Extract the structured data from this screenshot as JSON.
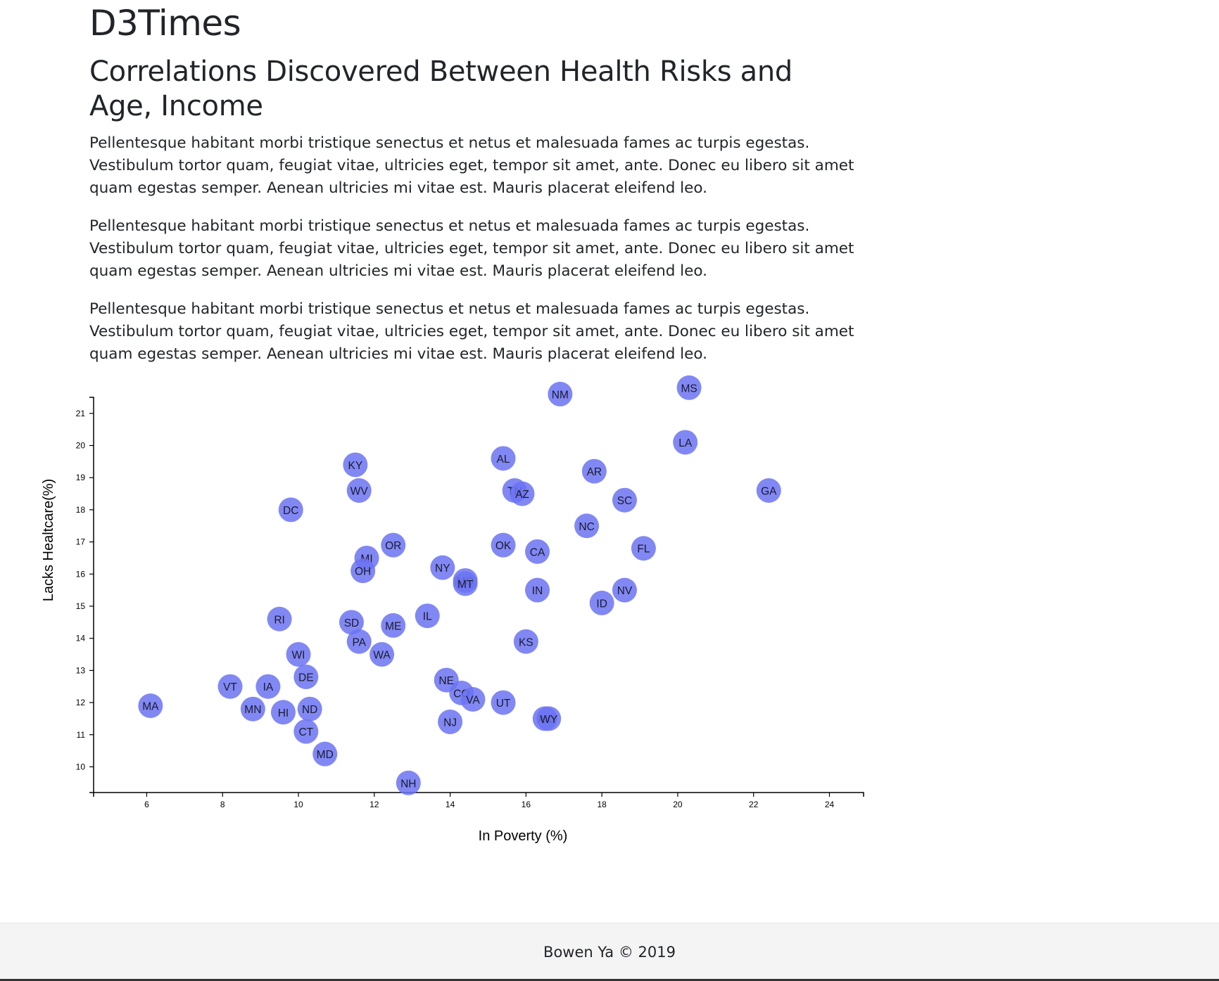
{
  "page": {
    "site_title": "D3Times",
    "headline": "Correlations Discovered Between Health Risks and Age, Income",
    "paragraphs": [
      "Pellentesque habitant morbi tristique senectus et netus et malesuada fames ac turpis egestas. Vestibulum tortor quam, feugiat vitae, ultricies eget, tempor sit amet, ante. Donec eu libero sit amet quam egestas semper. Aenean ultricies mi vitae est. Mauris placerat eleifend leo.",
      "Pellentesque habitant morbi tristique senectus et netus et malesuada fames ac turpis egestas. Vestibulum tortor quam, feugiat vitae, ultricies eget, tempor sit amet, ante. Donec eu libero sit amet quam egestas semper. Aenean ultricies mi vitae est. Mauris placerat eleifend leo.",
      "Pellentesque habitant morbi tristique senectus et netus et malesuada fames ac turpis egestas. Vestibulum tortor quam, feugiat vitae, ultricies eget, tempor sit amet, ante. Donec eu libero sit amet quam egestas semper. Aenean ultricies mi vitae est. Mauris placerat eleifend leo."
    ],
    "footer": "Bowen Ya © 2019"
  },
  "colors": {
    "point_fill": "#6b73f2",
    "text": "#212529",
    "axis": "#000000"
  },
  "chart_data": {
    "type": "scatter",
    "title": "",
    "xlabel": "In Poverty (%)",
    "ylabel": "Lacks Healtcare(%)",
    "xlim": [
      4.6,
      24.9
    ],
    "ylim": [
      9.2,
      21.5
    ],
    "xticks": [
      6,
      8,
      10,
      12,
      14,
      16,
      18,
      20,
      22,
      24
    ],
    "yticks": [
      10,
      11,
      12,
      13,
      14,
      15,
      16,
      17,
      18,
      19,
      20,
      21
    ],
    "grid": false,
    "points": [
      {
        "label": "MA",
        "x": 6.1,
        "y": 11.9
      },
      {
        "label": "VT",
        "x": 8.2,
        "y": 12.5
      },
      {
        "label": "IA",
        "x": 9.2,
        "y": 12.5
      },
      {
        "label": "MN",
        "x": 8.8,
        "y": 11.8
      },
      {
        "label": "HI",
        "x": 9.6,
        "y": 11.7
      },
      {
        "label": "ND",
        "x": 10.3,
        "y": 11.8
      },
      {
        "label": "CT",
        "x": 10.2,
        "y": 11.1
      },
      {
        "label": "MD",
        "x": 10.7,
        "y": 10.4
      },
      {
        "label": "DE",
        "x": 10.2,
        "y": 12.8
      },
      {
        "label": "WI",
        "x": 10.0,
        "y": 13.5
      },
      {
        "label": "RI",
        "x": 9.5,
        "y": 14.6
      },
      {
        "label": "DC",
        "x": 9.8,
        "y": 18.0
      },
      {
        "label": "KY",
        "x": 11.5,
        "y": 19.4
      },
      {
        "label": "WV",
        "x": 11.6,
        "y": 18.6
      },
      {
        "label": "MI",
        "x": 11.8,
        "y": 16.5
      },
      {
        "label": "OH",
        "x": 11.7,
        "y": 16.1
      },
      {
        "label": "OR",
        "x": 12.5,
        "y": 16.9
      },
      {
        "label": "SD",
        "x": 11.4,
        "y": 14.5
      },
      {
        "label": "PA",
        "x": 11.6,
        "y": 13.9
      },
      {
        "label": "ME",
        "x": 12.5,
        "y": 14.4
      },
      {
        "label": "WA",
        "x": 12.2,
        "y": 13.5
      },
      {
        "label": "IL",
        "x": 13.4,
        "y": 14.7
      },
      {
        "label": "NH",
        "x": 12.9,
        "y": 9.5
      },
      {
        "label": "NY",
        "x": 13.8,
        "y": 16.2
      },
      {
        "label": "NE",
        "x": 13.9,
        "y": 12.7
      },
      {
        "label": "CO",
        "x": 14.3,
        "y": 12.3
      },
      {
        "label": "VA",
        "x": 14.6,
        "y": 12.1
      },
      {
        "label": "NJ",
        "x": 14.0,
        "y": 11.4
      },
      {
        "label": "MO",
        "x": 14.4,
        "y": 15.8
      },
      {
        "label": "MT",
        "x": 14.4,
        "y": 15.7
      },
      {
        "label": "UT",
        "x": 15.4,
        "y": 12.0
      },
      {
        "label": "OK",
        "x": 15.4,
        "y": 16.9
      },
      {
        "label": "AL",
        "x": 15.4,
        "y": 19.6
      },
      {
        "label": "TN",
        "x": 15.7,
        "y": 18.6
      },
      {
        "label": "AZ",
        "x": 15.9,
        "y": 18.5
      },
      {
        "label": "CA",
        "x": 16.3,
        "y": 16.7
      },
      {
        "label": "IN",
        "x": 16.3,
        "y": 15.5
      },
      {
        "label": "KS",
        "x": 16.0,
        "y": 13.9
      },
      {
        "label": "AK",
        "x": 16.5,
        "y": 11.5
      },
      {
        "label": "WY",
        "x": 16.6,
        "y": 11.5
      },
      {
        "label": "NM",
        "x": 16.9,
        "y": 21.6
      },
      {
        "label": "NC",
        "x": 17.6,
        "y": 17.5
      },
      {
        "label": "AR",
        "x": 17.8,
        "y": 19.2
      },
      {
        "label": "ID",
        "x": 18.0,
        "y": 15.1
      },
      {
        "label": "SC",
        "x": 18.6,
        "y": 18.3
      },
      {
        "label": "NV",
        "x": 18.6,
        "y": 15.5
      },
      {
        "label": "FL",
        "x": 19.1,
        "y": 16.8
      },
      {
        "label": "LA",
        "x": 20.2,
        "y": 20.1
      },
      {
        "label": "MS",
        "x": 20.3,
        "y": 21.8
      },
      {
        "label": "GA",
        "x": 22.4,
        "y": 18.6
      }
    ]
  }
}
